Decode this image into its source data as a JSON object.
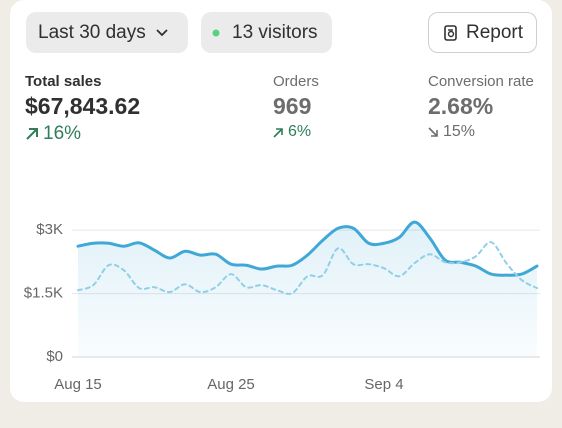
{
  "toolbar": {
    "range": "Last 30 days",
    "visitors": "13 visitors",
    "report": "Report"
  },
  "metrics": [
    {
      "label": "Total sales",
      "value": "$67,843.62",
      "change": "16%"
    },
    {
      "label": "Orders",
      "value": "969",
      "change": "6%"
    },
    {
      "label": "Conversion rate",
      "value": "2.68%",
      "change": "15%"
    }
  ],
  "chart_data": {
    "type": "line",
    "categories": [
      "Aug 15",
      null,
      null,
      null,
      null,
      null,
      null,
      null,
      null,
      null,
      "Aug 25",
      null,
      null,
      null,
      null,
      null,
      null,
      null,
      null,
      null,
      "Sep 4",
      null,
      null,
      null,
      null,
      null,
      null,
      null,
      null,
      null,
      null
    ],
    "series": [
      {
        "color": "#3fa8d6",
        "values": [
          2620,
          2690,
          2690,
          2620,
          2700,
          2525,
          2340,
          2500,
          2410,
          2430,
          2195,
          2170,
          2080,
          2150,
          2170,
          2410,
          2760,
          3045,
          3045,
          2690,
          2690,
          2830,
          3190,
          2810,
          2290,
          2240,
          2150,
          1960,
          1935,
          1960,
          2150
        ]
      },
      {
        "color": "#8fd0e8",
        "dashed": true,
        "values": [
          1580,
          1700,
          2170,
          2050,
          1630,
          1650,
          1535,
          1720,
          1535,
          1650,
          1960,
          1650,
          1700,
          1580,
          1510,
          1910,
          1935,
          2570,
          2195,
          2195,
          2100,
          1910,
          2220,
          2430,
          2240,
          2240,
          2380,
          2715,
          2220,
          1820,
          1630
        ]
      }
    ],
    "ylim": [
      0,
      3500
    ],
    "yticks": [
      {
        "value": 0,
        "label": "$0"
      },
      {
        "value": 1500,
        "label": "$1.5K"
      },
      {
        "value": 3000,
        "label": "$3K"
      }
    ],
    "grid": true
  }
}
